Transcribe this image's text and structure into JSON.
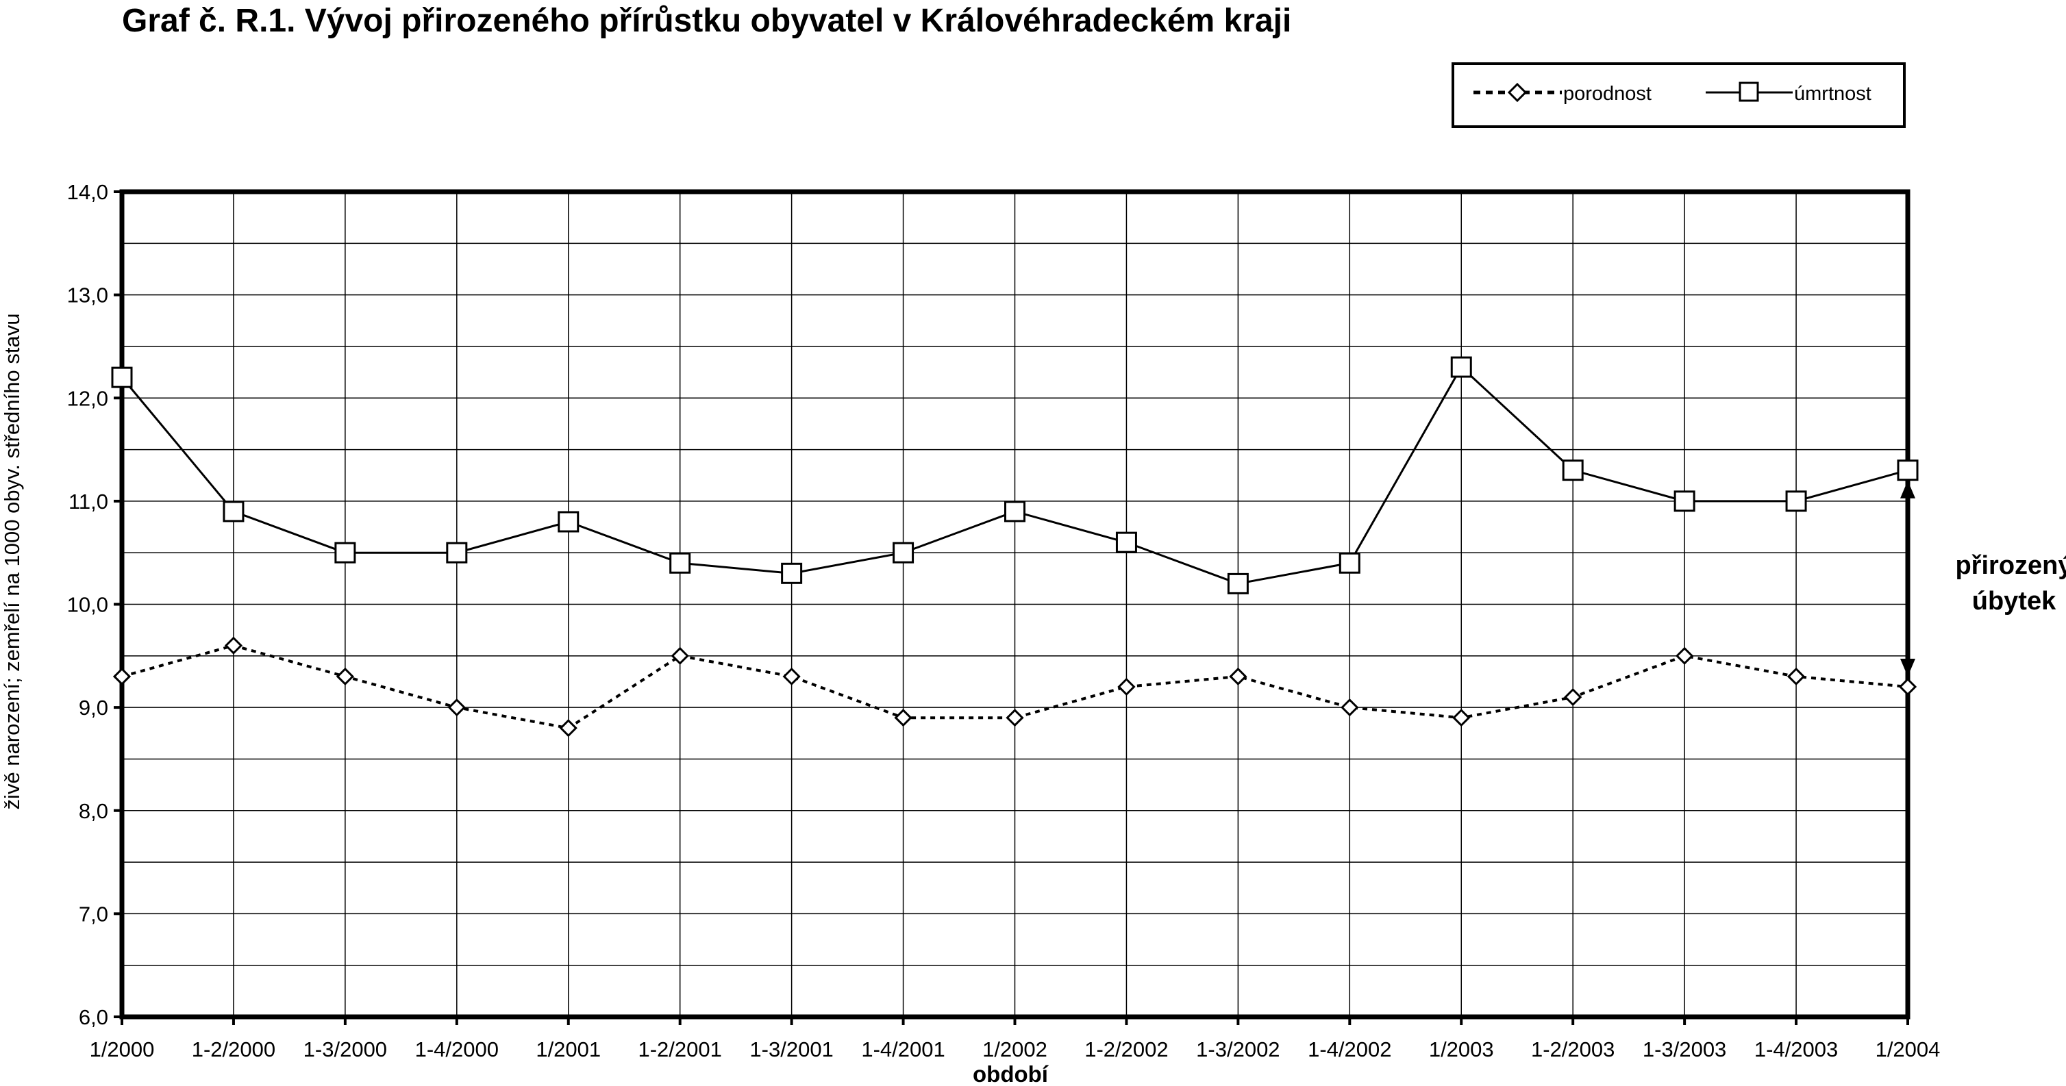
{
  "chart_data": {
    "type": "line",
    "title": "Graf č. R.1. Vývoj přirozeného přírůstku obyvatel v Královéhradeckém kraji",
    "xlabel": "období",
    "ylabel": "živě narození; zemřelí na 1000 obyv. středního stavu",
    "ylim": [
      6.0,
      14.0
    ],
    "yticks": [
      "6,0",
      "7,0",
      "8,0",
      "9,0",
      "10,0",
      "11,0",
      "12,0",
      "13,0",
      "14,0"
    ],
    "categories": [
      "1/2000",
      "1-2/2000",
      "1-3/2000",
      "1-4/2000",
      "1/2001",
      "1-2/2001",
      "1-3/2001",
      "1-4/2001",
      "1/2002",
      "1-2/2002",
      "1-3/2002",
      "1-4/2002",
      "1/2003",
      "1-2/2003",
      "1-3/2003",
      "1-4/2003",
      "1/2004"
    ],
    "series": [
      {
        "name": "porodnost",
        "style": "dotted",
        "marker": "diamond",
        "values": [
          9.3,
          9.6,
          9.3,
          9.0,
          8.8,
          9.5,
          9.3,
          8.9,
          8.9,
          9.2,
          9.3,
          9.0,
          8.9,
          9.1,
          9.5,
          9.3,
          9.2
        ]
      },
      {
        "name": "úmrtnost",
        "style": "solid",
        "marker": "square",
        "values": [
          12.2,
          10.9,
          10.5,
          10.5,
          10.8,
          10.4,
          10.3,
          10.5,
          10.9,
          10.6,
          10.2,
          10.4,
          12.3,
          11.3,
          11.0,
          11.0,
          11.3
        ]
      }
    ],
    "legend_position": "top-right",
    "grid": true,
    "annotation": {
      "line1": "přirozený",
      "line2": "úbytek",
      "from_value": 11.3,
      "to_value": 9.2
    }
  },
  "colors": {
    "line": "#000000",
    "grid": "#000000",
    "background": "#ffffff"
  }
}
